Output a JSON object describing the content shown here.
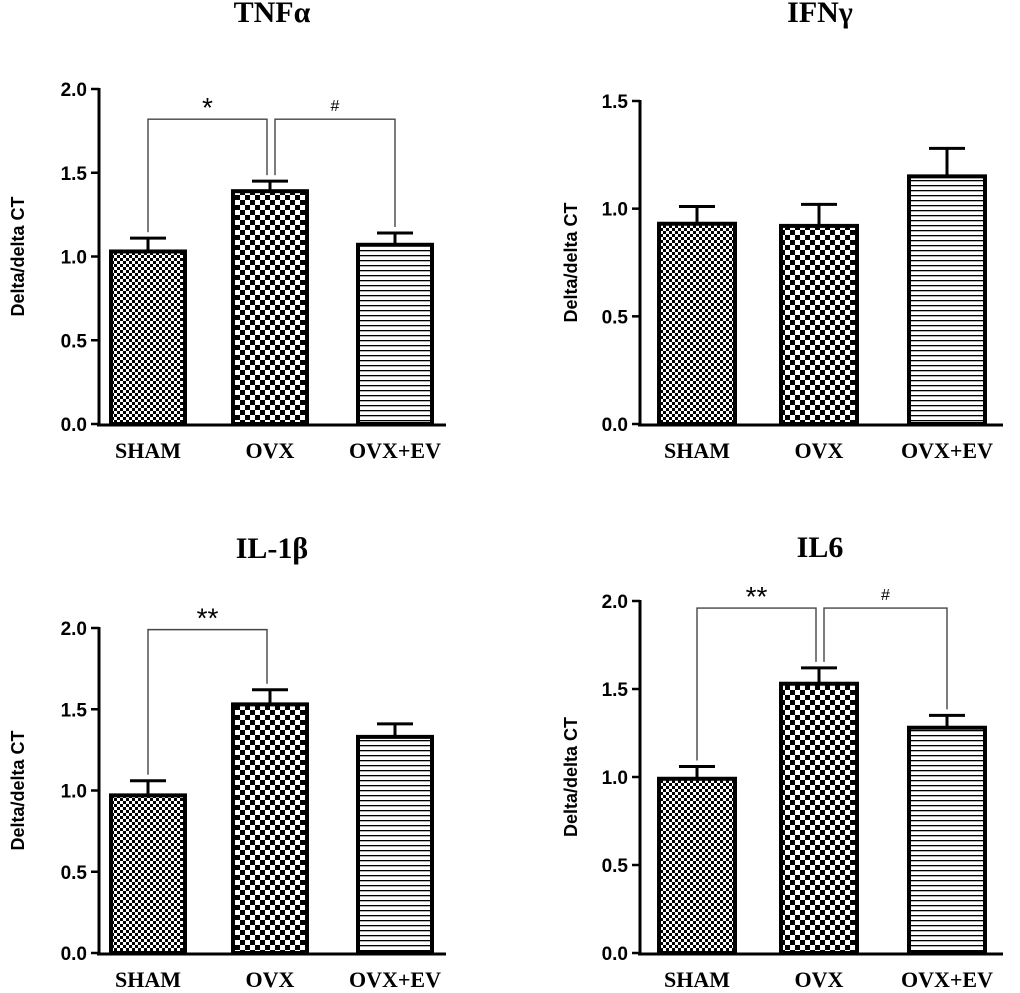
{
  "chart_data": [
    {
      "type": "bar",
      "title": "TNFα",
      "ylabel": "Delta/delta CT",
      "xlabel": "",
      "ylim": [
        0,
        2.0
      ],
      "yticks": [
        0.0,
        0.5,
        1.0,
        1.5,
        2.0
      ],
      "ytick_labels": [
        "0.0",
        "0.5",
        "1.0",
        "1.5",
        "2.0"
      ],
      "categories": [
        "SHAM",
        "OVX",
        "OVX+EV"
      ],
      "values": [
        1.03,
        1.39,
        1.07
      ],
      "errors": [
        0.08,
        0.06,
        0.07
      ],
      "patterns": [
        "fine-checker",
        "coarse-checker",
        "horizontal-lines"
      ],
      "significance": [
        {
          "from": 0,
          "to": 1,
          "label": "*",
          "level": 1.82
        },
        {
          "from": 1,
          "to": 2,
          "label": "#",
          "level": 1.82
        }
      ]
    },
    {
      "type": "bar",
      "title": "IFNγ",
      "ylabel": "Delta/delta CT",
      "xlabel": "",
      "ylim": [
        0,
        1.5
      ],
      "yticks": [
        0.0,
        0.5,
        1.0,
        1.5
      ],
      "ytick_labels": [
        "0.0",
        "0.5",
        "1.0",
        "1.5"
      ],
      "categories": [
        "SHAM",
        "OVX",
        "OVX+EV"
      ],
      "values": [
        0.93,
        0.92,
        1.15
      ],
      "errors": [
        0.08,
        0.1,
        0.13
      ],
      "patterns": [
        "fine-checker",
        "coarse-checker",
        "horizontal-lines"
      ],
      "significance": []
    },
    {
      "type": "bar",
      "title": "IL-1β",
      "ylabel": "Delta/delta CT",
      "xlabel": "",
      "ylim": [
        0,
        2.0
      ],
      "yticks": [
        0.0,
        0.5,
        1.0,
        1.5,
        2.0
      ],
      "ytick_labels": [
        "0.0",
        "0.5",
        "1.0",
        "1.5",
        "2.0"
      ],
      "categories": [
        "SHAM",
        "OVX",
        "OVX+EV"
      ],
      "values": [
        0.97,
        1.53,
        1.33
      ],
      "errors": [
        0.09,
        0.09,
        0.08
      ],
      "patterns": [
        "fine-checker",
        "coarse-checker",
        "horizontal-lines"
      ],
      "significance": [
        {
          "from": 0,
          "to": 1,
          "label": "**",
          "level": 1.99
        }
      ]
    },
    {
      "type": "bar",
      "title": "IL6",
      "ylabel": "Delta/delta CT",
      "xlabel": "",
      "ylim": [
        0,
        2.0
      ],
      "yticks": [
        0.0,
        0.5,
        1.0,
        1.5,
        2.0
      ],
      "ytick_labels": [
        "0.0",
        "0.5",
        "1.0",
        "1.5",
        "2.0"
      ],
      "categories": [
        "SHAM",
        "OVX",
        "OVX+EV"
      ],
      "values": [
        0.99,
        1.53,
        1.28
      ],
      "errors": [
        0.07,
        0.09,
        0.07
      ],
      "patterns": [
        "fine-checker",
        "coarse-checker",
        "horizontal-lines"
      ],
      "significance": [
        {
          "from": 0,
          "to": 1,
          "label": "**",
          "level": 1.96
        },
        {
          "from": 1,
          "to": 2,
          "label": "#",
          "level": 1.96
        }
      ]
    }
  ]
}
